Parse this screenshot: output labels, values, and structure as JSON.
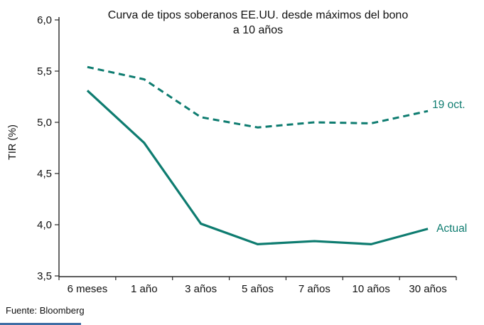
{
  "source": "Fuente: Bloomberg",
  "footer_divider_color": "#3f6ea5",
  "chart_data": {
    "type": "line",
    "title": "Curva de tipos soberanos EE.UU. desde máximos del bono a 10 años",
    "title_line1": "Curva de tipos soberanos EE.UU. desde máximos del bono",
    "title_line2": "a 10 años",
    "ylabel": "TIR (%)",
    "categories": [
      "6 meses",
      "1 año",
      "3 años",
      "5 años",
      "7 años",
      "10 años",
      "30 años"
    ],
    "series": [
      {
        "name": "19 oct.",
        "style": "dashed",
        "values": [
          5.54,
          5.42,
          5.05,
          4.95,
          5.0,
          4.99,
          5.11
        ]
      },
      {
        "name": "Actual",
        "style": "solid",
        "values": [
          5.31,
          4.8,
          4.01,
          3.81,
          3.84,
          3.81,
          3.96
        ]
      }
    ],
    "ylim": [
      3.5,
      6.0
    ],
    "yticks": [
      6.0,
      5.5,
      5.0,
      4.5,
      4.0,
      3.5
    ],
    "ytick_labels": [
      "6,0",
      "5,5",
      "5,0",
      "4,5",
      "4,0",
      "3,5"
    ],
    "decimal_style": "comma",
    "grid": false,
    "legend": "inline labels at right end of each line",
    "line_color": "#0e7c70",
    "axis_color": "#262626",
    "text_color": "#111111"
  }
}
